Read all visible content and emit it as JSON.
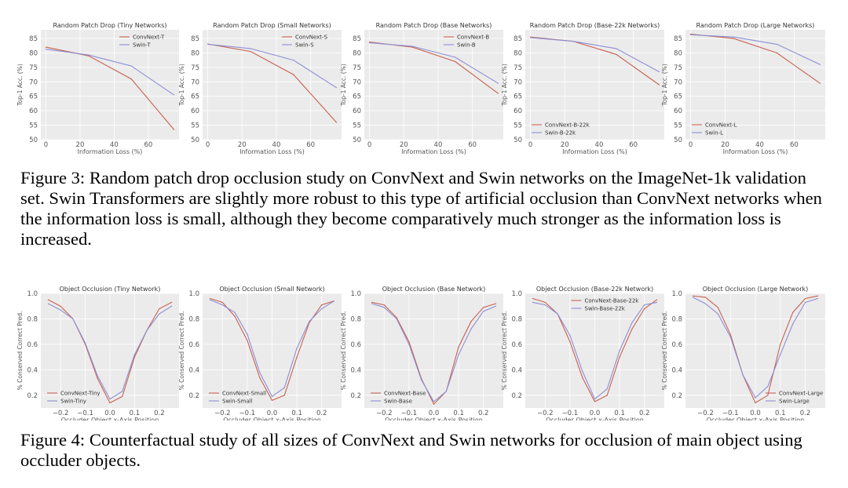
{
  "figure3": {
    "caption_label": "Figure 3:",
    "caption_text": "Random patch drop occlusion study on ConvNext and Swin networks on the ImageNet-1k validation set. Swin Transformers are slightly more robust to this type of artificial occlusion than ConvNext networks when the information loss is small, although they become comparatively much stronger as the information loss is increased.",
    "chart_data": [
      {
        "type": "line",
        "title": "Random Patch Drop (Tiny Networks)",
        "xlabel": "Information Loss (%)",
        "ylabel": "Top-1 Acc. (%)",
        "xlim": [
          -3,
          78
        ],
        "ylim": [
          50,
          88
        ],
        "xticks": [
          0,
          20,
          40,
          60
        ],
        "yticks": [
          50,
          55,
          60,
          65,
          70,
          75,
          80,
          85
        ],
        "grid": true,
        "legend_position": "top-right",
        "x": [
          0,
          25,
          50,
          75
        ],
        "series": [
          {
            "name": "ConvNext-T",
            "color": "#c8624f",
            "values": [
              82.0,
              79.0,
              71.0,
              53.5
            ]
          },
          {
            "name": "Swin-T",
            "color": "#8c8fd4",
            "values": [
              81.3,
              79.3,
              75.5,
              65.5
            ]
          }
        ]
      },
      {
        "type": "line",
        "title": "Random Patch Drop (Small Networks)",
        "xlabel": "Information Loss (%)",
        "ylabel": "Top-1 Acc. (%)",
        "xlim": [
          -3,
          78
        ],
        "ylim": [
          50,
          88
        ],
        "xticks": [
          0,
          20,
          40,
          60
        ],
        "yticks": [
          50,
          55,
          60,
          65,
          70,
          75,
          80,
          85
        ],
        "grid": true,
        "legend_position": "top-right",
        "x": [
          0,
          25,
          50,
          75
        ],
        "series": [
          {
            "name": "ConvNext-S",
            "color": "#c8624f",
            "values": [
              83.1,
              80.5,
              72.5,
              56.0
            ]
          },
          {
            "name": "Swin-S",
            "color": "#8c8fd4",
            "values": [
              83.0,
              81.5,
              77.5,
              68.0
            ]
          }
        ]
      },
      {
        "type": "line",
        "title": "Random Patch Drop (Base Networks)",
        "xlabel": "Information Loss (%)",
        "ylabel": "Top-1 Acc. (%)",
        "xlim": [
          -3,
          78
        ],
        "ylim": [
          50,
          88
        ],
        "xticks": [
          0,
          20,
          40,
          60
        ],
        "yticks": [
          50,
          55,
          60,
          65,
          70,
          75,
          80,
          85
        ],
        "grid": true,
        "legend_position": "top-right",
        "x": [
          0,
          25,
          50,
          75
        ],
        "series": [
          {
            "name": "ConvNext-B",
            "color": "#c8624f",
            "values": [
              83.8,
              82.0,
              77.0,
              66.0
            ]
          },
          {
            "name": "Swin-B",
            "color": "#8c8fd4",
            "values": [
              83.5,
              82.3,
              78.5,
              69.5
            ]
          }
        ]
      },
      {
        "type": "line",
        "title": "Random Patch Drop (Base-22k Networks)",
        "xlabel": "Information Loss (%)",
        "ylabel": "Top-1 Acc. (%)",
        "xlim": [
          -3,
          78
        ],
        "ylim": [
          50,
          88
        ],
        "xticks": [
          0,
          20,
          40,
          60
        ],
        "yticks": [
          50,
          55,
          60,
          65,
          70,
          75,
          80,
          85
        ],
        "grid": true,
        "legend_position": "bottom-left",
        "x": [
          0,
          25,
          50,
          75
        ],
        "series": [
          {
            "name": "ConvNext-B-22k",
            "color": "#c8624f",
            "values": [
              85.5,
              84.0,
              79.5,
              69.0
            ]
          },
          {
            "name": "Swin-B-22k",
            "color": "#8c8fd4",
            "values": [
              85.3,
              84.0,
              81.5,
              73.5
            ]
          }
        ]
      },
      {
        "type": "line",
        "title": "Random Patch Drop (Large Networks)",
        "xlabel": "Information Loss (%)",
        "ylabel": "Top-1 Acc. (%)",
        "xlim": [
          -3,
          78
        ],
        "ylim": [
          50,
          88
        ],
        "xticks": [
          0,
          20,
          40,
          60
        ],
        "yticks": [
          50,
          55,
          60,
          65,
          70,
          75,
          80,
          85
        ],
        "grid": true,
        "legend_position": "bottom-left",
        "x": [
          0,
          25,
          50,
          75
        ],
        "series": [
          {
            "name": "ConvNext-L",
            "color": "#c8624f",
            "values": [
              86.5,
              85.0,
              80.0,
              69.5
            ]
          },
          {
            "name": "Swin-L",
            "color": "#8c8fd4",
            "values": [
              86.3,
              85.5,
              83.0,
              76.0
            ]
          }
        ]
      }
    ]
  },
  "figure4": {
    "caption_label": "Figure 4:",
    "caption_text": "Counterfactual study of all sizes of ConvNext and Swin networks for occlusion of main object using occluder objects.",
    "chart_data": [
      {
        "type": "line",
        "title": "Object Occlusion (Tiny Network)",
        "xlabel": "Occluder Object x-Axis Position",
        "ylabel": "% Conserved Correct Pred.",
        "xlim": [
          -0.28,
          0.28
        ],
        "ylim": [
          0.1,
          1.0
        ],
        "xticks": [
          -0.2,
          -0.1,
          0.0,
          0.1,
          0.2
        ],
        "xtick_labels": [
          "−0.2",
          "−0.1",
          "0.0",
          "0.1",
          "0.2"
        ],
        "yticks": [
          0.2,
          0.4,
          0.6,
          0.8,
          1.0
        ],
        "ytick_labels": [
          "0.2",
          "0.4",
          "0.6",
          "0.8",
          "1.0"
        ],
        "grid": true,
        "legend_position": "bottom-left",
        "x": [
          -0.25,
          -0.2,
          -0.15,
          -0.1,
          -0.05,
          0.0,
          0.05,
          0.1,
          0.15,
          0.2,
          0.25
        ],
        "series": [
          {
            "name": "ConvNext-Tiny",
            "color": "#c8624f",
            "values": [
              0.95,
              0.9,
              0.8,
              0.6,
              0.33,
              0.14,
              0.19,
              0.5,
              0.71,
              0.88,
              0.93
            ]
          },
          {
            "name": "Swin-Tiny",
            "color": "#8c8fd4",
            "values": [
              0.92,
              0.87,
              0.8,
              0.61,
              0.35,
              0.17,
              0.23,
              0.52,
              0.71,
              0.84,
              0.9
            ]
          }
        ]
      },
      {
        "type": "line",
        "title": "Object Occlusion (Small Network)",
        "xlabel": "Occluder Object x-Axis Position",
        "ylabel": "% Conserved Correct Pred.",
        "xlim": [
          -0.28,
          0.28
        ],
        "ylim": [
          0.1,
          1.0
        ],
        "xticks": [
          -0.2,
          -0.1,
          0.0,
          0.1,
          0.2
        ],
        "xtick_labels": [
          "−0.2",
          "−0.1",
          "0.0",
          "0.1",
          "0.2"
        ],
        "yticks": [
          0.2,
          0.4,
          0.6,
          0.8,
          1.0
        ],
        "ytick_labels": [
          "0.2",
          "0.4",
          "0.6",
          "0.8",
          "1.0"
        ],
        "grid": true,
        "legend_position": "bottom-left",
        "x": [
          -0.25,
          -0.2,
          -0.15,
          -0.1,
          -0.05,
          0.0,
          0.05,
          0.1,
          0.15,
          0.2,
          0.25
        ],
        "series": [
          {
            "name": "ConvNext-Small",
            "color": "#c8624f",
            "values": [
              0.96,
              0.93,
              0.82,
              0.63,
              0.34,
              0.16,
              0.2,
              0.5,
              0.77,
              0.91,
              0.94
            ]
          },
          {
            "name": "Swin-Small",
            "color": "#8c8fd4",
            "values": [
              0.95,
              0.91,
              0.85,
              0.68,
              0.38,
              0.19,
              0.26,
              0.57,
              0.78,
              0.88,
              0.94
            ]
          }
        ]
      },
      {
        "type": "line",
        "title": "Object Occlusion (Base Network)",
        "xlabel": "Occluder Object x-Axis Position",
        "ylabel": "% Conserved Correct Pred.",
        "xlim": [
          -0.28,
          0.28
        ],
        "ylim": [
          0.1,
          1.0
        ],
        "xticks": [
          -0.2,
          -0.1,
          0.0,
          0.1,
          0.2
        ],
        "xtick_labels": [
          "−0.2",
          "−0.1",
          "0.0",
          "0.1",
          "0.2"
        ],
        "yticks": [
          0.2,
          0.4,
          0.6,
          0.8,
          1.0
        ],
        "ytick_labels": [
          "0.2",
          "0.4",
          "0.6",
          "0.8",
          "1.0"
        ],
        "grid": true,
        "legend_position": "bottom-left",
        "x": [
          -0.25,
          -0.2,
          -0.15,
          -0.1,
          -0.05,
          0.0,
          0.05,
          0.1,
          0.15,
          0.2,
          0.25
        ],
        "series": [
          {
            "name": "ConvNext-Base",
            "color": "#c8624f",
            "values": [
              0.93,
              0.91,
              0.81,
              0.62,
              0.33,
              0.13,
              0.23,
              0.58,
              0.78,
              0.89,
              0.92
            ]
          },
          {
            "name": "Swin-Base",
            "color": "#8c8fd4",
            "values": [
              0.92,
              0.89,
              0.8,
              0.6,
              0.32,
              0.15,
              0.23,
              0.52,
              0.72,
              0.86,
              0.9
            ]
          }
        ]
      },
      {
        "type": "line",
        "title": "Object Occlusion (Base-22k Network)",
        "xlabel": "Occluder Object x-Axis Position",
        "ylabel": "% Conserved Correct Pred.",
        "xlim": [
          -0.28,
          0.28
        ],
        "ylim": [
          0.1,
          1.0
        ],
        "xticks": [
          -0.2,
          -0.1,
          0.0,
          0.1,
          0.2
        ],
        "xtick_labels": [
          "−0.2",
          "−0.1",
          "0.0",
          "0.1",
          "0.2"
        ],
        "yticks": [
          0.2,
          0.4,
          0.6,
          0.8,
          1.0
        ],
        "ytick_labels": [
          "0.2",
          "0.4",
          "0.6",
          "0.8",
          "1.0"
        ],
        "grid": true,
        "legend_position": "top",
        "x": [
          -0.25,
          -0.2,
          -0.15,
          -0.1,
          -0.05,
          0.0,
          0.05,
          0.1,
          0.15,
          0.2,
          0.25
        ],
        "series": [
          {
            "name": "ConvNext-Base-22k",
            "color": "#c8624f",
            "values": [
              0.96,
              0.93,
              0.84,
              0.62,
              0.34,
              0.15,
              0.2,
              0.5,
              0.72,
              0.88,
              0.95
            ]
          },
          {
            "name": "Swin-Base-22k",
            "color": "#8c8fd4",
            "values": [
              0.93,
              0.91,
              0.84,
              0.67,
              0.39,
              0.17,
              0.25,
              0.55,
              0.77,
              0.91,
              0.93
            ]
          }
        ]
      },
      {
        "type": "line",
        "title": "Object Occlusion (Large Network)",
        "xlabel": "Occluder Object x-Axis Position",
        "ylabel": "% Conserved Correct Pred.",
        "xlim": [
          -0.28,
          0.28
        ],
        "ylim": [
          0.1,
          1.0
        ],
        "xticks": [
          -0.2,
          -0.1,
          0.0,
          0.1,
          0.2
        ],
        "xtick_labels": [
          "−0.2",
          "−0.1",
          "0.0",
          "0.1",
          "0.2"
        ],
        "yticks": [
          0.2,
          0.4,
          0.6,
          0.8,
          1.0
        ],
        "ytick_labels": [
          "0.2",
          "0.4",
          "0.6",
          "0.8",
          "1.0"
        ],
        "grid": true,
        "legend_position": "bottom-right",
        "x": [
          -0.25,
          -0.2,
          -0.15,
          -0.1,
          -0.05,
          0.0,
          0.05,
          0.1,
          0.15,
          0.2,
          0.25
        ],
        "series": [
          {
            "name": "ConvNext-Large",
            "color": "#c8624f",
            "values": [
              0.98,
              0.97,
              0.89,
              0.68,
              0.36,
              0.14,
              0.2,
              0.6,
              0.85,
              0.96,
              0.98
            ]
          },
          {
            "name": "Swin-Large",
            "color": "#8c8fd4",
            "values": [
              0.97,
              0.92,
              0.84,
              0.66,
              0.36,
              0.18,
              0.27,
              0.52,
              0.76,
              0.93,
              0.96
            ]
          }
        ]
      }
    ]
  }
}
